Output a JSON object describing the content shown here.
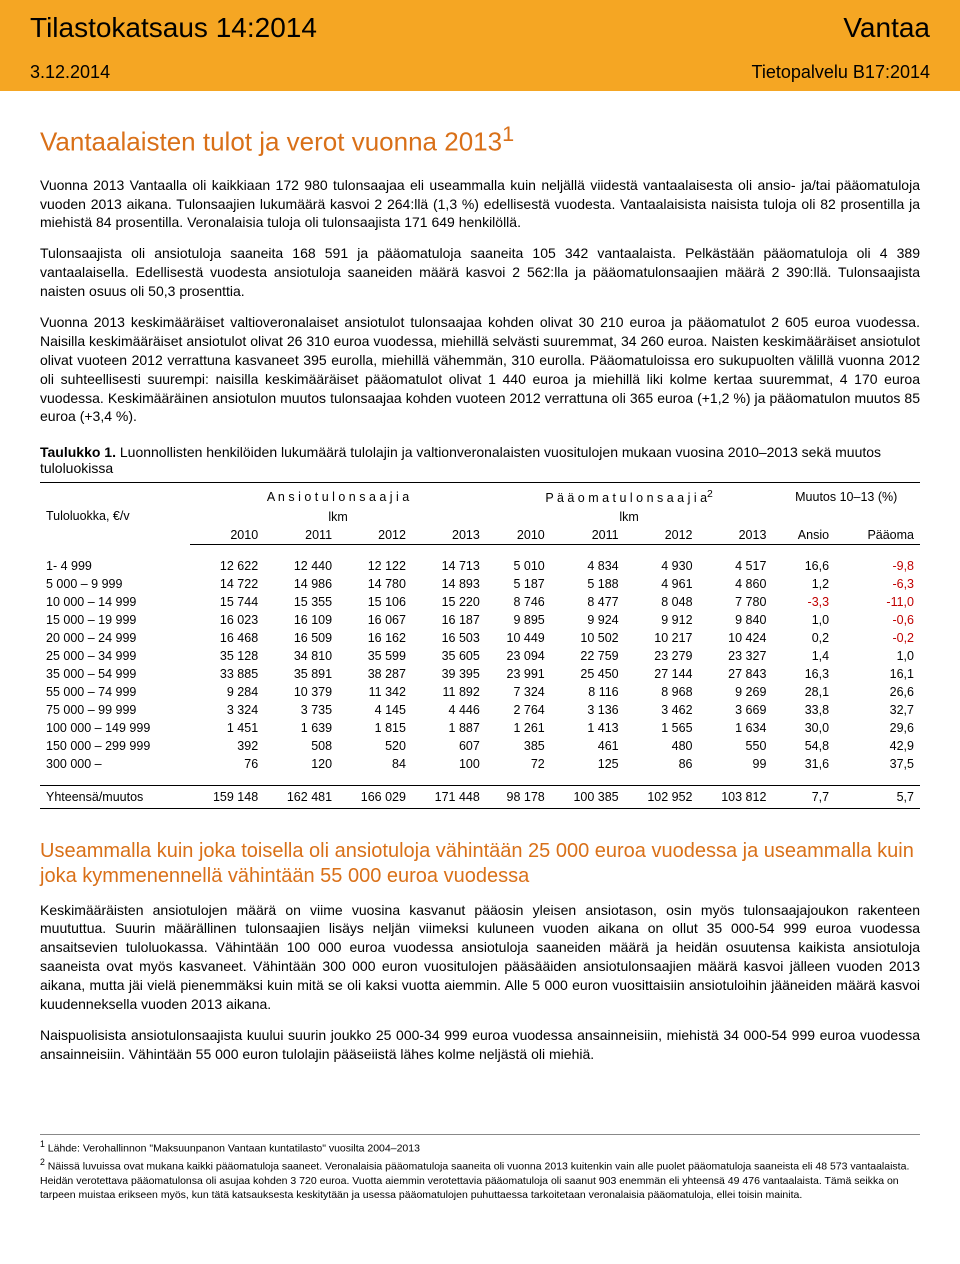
{
  "header": {
    "left1": "Tilastokatsaus 14:2014",
    "right1": "Vantaa",
    "left2": "3.12.2014",
    "right2": "Tietopalvelu B17:2014"
  },
  "title": "Vantaalaisten tulot ja verot vuonna 2013",
  "title_sup": "1",
  "para1": "Vuonna 2013 Vantaalla oli kaikkiaan 172 980 tulonsaajaa eli useammalla kuin neljällä viidestä vantaalaisesta oli ansio- ja/tai pääomatuloja vuoden 2013 aikana. Tulonsaajien lukumäärä kasvoi 2 264:llä (1,3 %) edellisestä vuodesta. Vantaalaisista naisista tuloja oli 82 prosentilla ja miehistä 84 prosentilla. Veronalaisia tuloja oli tulonsaajista 171 649 henkilöllä.",
  "para2": "Tulonsaajista oli ansiotuloja saaneita 168 591 ja pääomatuloja saaneita 105 342 vantaalaista. Pelkästään pääomatuloja oli 4 389 vantaalaisella. Edellisestä vuodesta ansiotuloja saaneiden määrä kasvoi 2 562:lla ja pääomatulonsaajien määrä 2 390:llä. Tulonsaajista naisten osuus oli 50,3 prosenttia.",
  "para3": "Vuonna 2013 keskimääräiset valtioveronalaiset ansiotulot tulonsaajaa kohden olivat 30 210 euroa ja pääomatulot 2 605 euroa vuodessa. Naisilla keskimääräiset ansiotulot olivat 26 310 euroa vuodessa, miehillä selvästi suuremmat, 34 260 euroa. Naisten keskimääräiset ansiotulot olivat vuoteen 2012 verrattuna kasvaneet 395 eurolla, miehillä vähemmän, 310 eurolla. Pääomatuloissa ero sukupuolten välillä vuonna 2012 oli suhteellisesti suurempi: naisilla keskimääräiset pääomatulot olivat 1 440 euroa ja miehillä liki kolme kertaa suuremmat, 4 170 euroa vuodessa. Keskimääräinen ansiotulon muutos tulonsaajaa kohden vuoteen 2012 verrattuna oli 365 euroa (+1,2 %) ja pääomatulon muutos 85 euroa (+3,4 %).",
  "table1": {
    "label": "Taulukko 1.",
    "caption": "Luonnollisten henkilöiden lukumäärä tulolajin ja valtionveronalaisten vuositulojen mukaan vuosina 2010–2013 sekä muutos tuloluokissa",
    "col_class": "Tuloluokka, €/v",
    "group_a": "A n s i o t u l o n s a a j i a",
    "group_p": "P ä ä o m a t u l o n s a a j i a",
    "group_p_sup": "2",
    "group_m": "Muutos 10–13 (%)",
    "sub_lkm": "lkm",
    "years": [
      "2010",
      "2011",
      "2012",
      "2013",
      "2010",
      "2011",
      "2012",
      "2013"
    ],
    "m_cols": [
      "Ansio",
      "Pääoma"
    ],
    "rows": [
      {
        "label": "1- 4 999",
        "a": [
          "12 622",
          "12 440",
          "12 122",
          "14 713"
        ],
        "p": [
          "5 010",
          "4 834",
          "4 930",
          "4 517"
        ],
        "m": [
          "16,6",
          "-9,8"
        ],
        "neg": [
          false,
          true
        ]
      },
      {
        "label": "5 000 – 9 999",
        "a": [
          "14 722",
          "14 986",
          "14 780",
          "14 893"
        ],
        "p": [
          "5 187",
          "5 188",
          "4 961",
          "4 860"
        ],
        "m": [
          "1,2",
          "-6,3"
        ],
        "neg": [
          false,
          true
        ]
      },
      {
        "label": "10 000 – 14 999",
        "a": [
          "15 744",
          "15 355",
          "15 106",
          "15 220"
        ],
        "p": [
          "8 746",
          "8 477",
          "8 048",
          "7 780"
        ],
        "m": [
          "-3,3",
          "-11,0"
        ],
        "neg": [
          true,
          true
        ]
      },
      {
        "label": "15 000 – 19 999",
        "a": [
          "16 023",
          "16 109",
          "16 067",
          "16 187"
        ],
        "p": [
          "9 895",
          "9 924",
          "9 912",
          "9 840"
        ],
        "m": [
          "1,0",
          "-0,6"
        ],
        "neg": [
          false,
          true
        ]
      },
      {
        "label": "20 000 – 24 999",
        "a": [
          "16 468",
          "16 509",
          "16 162",
          "16 503"
        ],
        "p": [
          "10 449",
          "10 502",
          "10 217",
          "10 424"
        ],
        "m": [
          "0,2",
          "-0,2"
        ],
        "neg": [
          false,
          true
        ]
      },
      {
        "label": "25 000 – 34 999",
        "a": [
          "35 128",
          "34 810",
          "35 599",
          "35 605"
        ],
        "p": [
          "23 094",
          "22 759",
          "23 279",
          "23 327"
        ],
        "m": [
          "1,4",
          "1,0"
        ],
        "neg": [
          false,
          false
        ]
      },
      {
        "label": "35 000 – 54 999",
        "a": [
          "33 885",
          "35 891",
          "38 287",
          "39 395"
        ],
        "p": [
          "23 991",
          "25 450",
          "27 144",
          "27 843"
        ],
        "m": [
          "16,3",
          "16,1"
        ],
        "neg": [
          false,
          false
        ]
      },
      {
        "label": "55 000 – 74 999",
        "a": [
          "9 284",
          "10 379",
          "11 342",
          "11 892"
        ],
        "p": [
          "7 324",
          "8 116",
          "8 968",
          "9 269"
        ],
        "m": [
          "28,1",
          "26,6"
        ],
        "neg": [
          false,
          false
        ]
      },
      {
        "label": "75 000 – 99 999",
        "a": [
          "3 324",
          "3 735",
          "4 145",
          "4 446"
        ],
        "p": [
          "2 764",
          "3 136",
          "3 462",
          "3 669"
        ],
        "m": [
          "33,8",
          "32,7"
        ],
        "neg": [
          false,
          false
        ]
      },
      {
        "label": "100 000 – 149 999",
        "a": [
          "1 451",
          "1 639",
          "1 815",
          "1 887"
        ],
        "p": [
          "1 261",
          "1 413",
          "1 565",
          "1 634"
        ],
        "m": [
          "30,0",
          "29,6"
        ],
        "neg": [
          false,
          false
        ]
      },
      {
        "label": "150 000 – 299 999",
        "a": [
          "392",
          "508",
          "520",
          "607"
        ],
        "p": [
          "385",
          "461",
          "480",
          "550"
        ],
        "m": [
          "54,8",
          "42,9"
        ],
        "neg": [
          false,
          false
        ]
      },
      {
        "label": "300 000 –",
        "a": [
          "76",
          "120",
          "84",
          "100"
        ],
        "p": [
          "72",
          "125",
          "86",
          "99"
        ],
        "m": [
          "31,6",
          "37,5"
        ],
        "neg": [
          false,
          false
        ]
      }
    ],
    "total": {
      "label": "Yhteensä/muutos",
      "a": [
        "159 148",
        "162 481",
        "166 029",
        "171 448"
      ],
      "p": [
        "98 178",
        "100 385",
        "102 952",
        "103 812"
      ],
      "m": [
        "7,7",
        "5,7"
      ],
      "neg": [
        false,
        false
      ]
    }
  },
  "subhead": "Useammalla kuin joka toisella oli ansiotuloja vähintään 25 000 euroa vuodessa ja useammalla kuin joka kymmenennellä vähintään 55 000 euroa vuodessa",
  "para4": "Keskimääräisten ansiotulojen määrä on viime vuosina kasvanut pääosin yleisen ansiotason, osin myös tulonsaajajoukon rakenteen muututtua. Suurin määrällinen tulonsaajien lisäys neljän viimeksi kuluneen vuoden aikana on ollut 35 000-54 999 euroa vuodessa ansaitsevien tuloluokassa. Vähintään 100 000 euroa vuodessa ansiotuloja saaneiden määrä ja heidän osuutensa kaikista ansiotuloja saaneista ovat myös kasvaneet. Vähintään 300 000 euron vuositulojen pääsääiden ansiotulonsaajien määrä kasvoi jälleen vuoden 2013 aikana, mutta jäi vielä pienemmäksi kuin mitä se oli kaksi vuotta aiemmin. Alle 5 000 euron vuosittaisiin ansiotuloihin jääneiden määrä kasvoi kuudenneksella vuoden 2013 aikana.",
  "para5": "Naispuolisista ansiotulonsaajista kuului suurin joukko 25 000-34 999 euroa vuodessa ansainneisiin, miehistä 34 000-54 999 euroa vuodessa ansainneisiin. Vähintään 55 000 euron tulolajin pääseiistä lähes kolme neljästä oli miehiä.",
  "footnotes": {
    "f1": "Lähde: Verohallinnon \"Maksuunpanon Vantaan kuntatilasto\" vuosilta 2004–2013",
    "f2": "Näissä luvuissa ovat mukana kaikki pääomatuloja saaneet. Veronalaisia pääomatuloja saaneita oli vuonna 2013 kuitenkin vain alle puolet pääomatuloja saaneista eli 48 573 vantaalaista. Heidän verotettava pääomatulonsa oli asujaa kohden 3 720 euroa. Vuotta aiemmin verotettavia pääomatuloja oli saanut 903 enemmän eli yhteensä 49 476 vantaalaista. Tämä seikka on tarpeen muistaa erikseen myös, kun tätä katsauksesta keskitytään ja usessa pääomatulojen puhuttaessa tarkoitetaan veronalaisia pääomatuloja, ellei toisin mainita."
  }
}
